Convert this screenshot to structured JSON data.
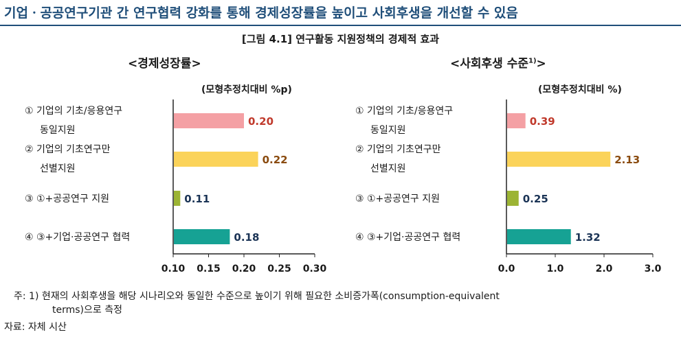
{
  "headline": "기업ㆍ공공연구기관 간 연구협력 강화를 통해 경제성장률을 높이고 사회후생을 개선할 수 있음",
  "figure_title": "[그림 4.1] 연구활동 지원정책의 경제적 효과",
  "charts": {
    "growth": {
      "title": "<경제성장률>",
      "unit": "(모형추정치대비 %p)"
    },
    "welfare": {
      "title_main": "<사회후생 수준",
      "title_sup": "1)",
      "title_end": ">",
      "unit": "(모형추정치대비 %)"
    }
  },
  "categories": [
    [
      "① 기업의 기초/응용연구",
      "동일지원"
    ],
    [
      "② 기업의 기초연구만",
      "선별지원"
    ],
    [
      "③ ①+공공연구 지원"
    ],
    [
      "④ ③+기업·공공연구 협력"
    ]
  ],
  "colors": [
    "#f4a0a4",
    "#fbd35a",
    "#9cb434",
    "#16a294"
  ],
  "label_colors": [
    "#c0392b",
    "#8a4b0f",
    "#1a3355",
    "#1a3355"
  ],
  "chart_data": [
    {
      "type": "bar",
      "orientation": "horizontal",
      "title": "<경제성장률>",
      "unit": "모형추정치대비 %p",
      "values": [
        0.2,
        0.22,
        0.11,
        0.18
      ],
      "value_labels": [
        "0.20",
        "0.22",
        "0.11",
        "0.18"
      ],
      "xlim": [
        0.1,
        0.3
      ],
      "ticks": [
        "0.10",
        "0.15",
        "0.20",
        "0.25",
        "0.30"
      ]
    },
    {
      "type": "bar",
      "orientation": "horizontal",
      "title": "<사회후생 수준1)>",
      "unit": "모형추정치대비 %",
      "values": [
        0.39,
        2.13,
        0.25,
        1.32
      ],
      "value_labels": [
        "0.39",
        "2.13",
        "0.25",
        "1.32"
      ],
      "xlim": [
        0.0,
        3.0
      ],
      "ticks": [
        "0.0",
        "1.0",
        "2.0",
        "3.0"
      ]
    }
  ],
  "notes": {
    "note_line1": "주: 1) 현재의 사회후생을 해당 시나리오와 동일한 수준으로 높이기 위해 필요한 소비증가폭(consumption-equivalent",
    "note_line2": "terms)으로 측정",
    "source": "자료: 자체 시산"
  }
}
